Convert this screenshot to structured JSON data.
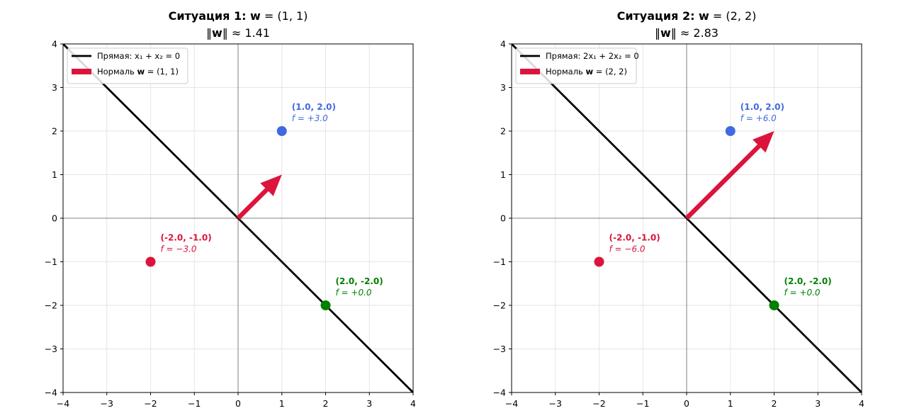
{
  "chart_data": [
    {
      "type": "scatter",
      "title": "Ситуация 1: w = (1, 1)",
      "title_bold": "Ситуация 1: ",
      "title_bold_vec": "w",
      "title_rest": " = (1, 1)",
      "subtitle": "‖w‖ ≈ 1.41",
      "subtitle_norm_prefix": "‖",
      "subtitle_norm_vec": "w",
      "subtitle_norm_suffix": "‖ ≈ 1.41",
      "xlim": [
        -4,
        4
      ],
      "ylim": [
        -4,
        4
      ],
      "xticks": [
        "−4",
        "−3",
        "−2",
        "−1",
        "0",
        "1",
        "2",
        "3",
        "4"
      ],
      "yticks": [
        "−4",
        "−3",
        "−2",
        "−1",
        "0",
        "1",
        "2",
        "3",
        "4"
      ],
      "grid": true,
      "legend_position": "top-left",
      "legend": [
        {
          "label_prefix": "Прямая: ",
          "label_math": "x₁ + x₂ = 0",
          "color": "#000000",
          "kind": "line"
        },
        {
          "label_prefix": "Нормаль ",
          "label_vec": "w",
          "label_math": " = (1, 1)",
          "color": "#dc143c",
          "kind": "arrow"
        }
      ],
      "line": {
        "x": [
          -4,
          4
        ],
        "y": [
          4,
          -4
        ],
        "color": "#000000"
      },
      "arrow": {
        "from": [
          0,
          0
        ],
        "to": [
          1,
          1
        ],
        "color": "#dc143c"
      },
      "points": [
        {
          "x": 1,
          "y": 2,
          "label": "(1.0, 2.0)",
          "f": "f = +3.0",
          "color": "#4169e1"
        },
        {
          "x": -2,
          "y": -1,
          "label": "(-2.0, -1.0)",
          "f": "f = −3.0",
          "color": "#dc143c"
        },
        {
          "x": 2,
          "y": -2,
          "label": "(2.0, -2.0)",
          "f": "f = +0.0",
          "color": "#008000"
        }
      ]
    },
    {
      "type": "scatter",
      "title": "Ситуация 2: w = (2, 2)",
      "title_bold": "Ситуация 2: ",
      "title_bold_vec": "w",
      "title_rest": " = (2, 2)",
      "subtitle": "‖w‖ ≈ 2.83",
      "subtitle_norm_prefix": "‖",
      "subtitle_norm_vec": "w",
      "subtitle_norm_suffix": "‖ ≈ 2.83",
      "xlim": [
        -4,
        4
      ],
      "ylim": [
        -4,
        4
      ],
      "xticks": [
        "−4",
        "−3",
        "−2",
        "−1",
        "0",
        "1",
        "2",
        "3",
        "4"
      ],
      "yticks": [
        "−4",
        "−3",
        "−2",
        "−1",
        "0",
        "1",
        "2",
        "3",
        "4"
      ],
      "grid": true,
      "legend_position": "top-left",
      "legend": [
        {
          "label_prefix": "Прямая: ",
          "label_math": "2x₁ + 2x₂ = 0",
          "color": "#000000",
          "kind": "line"
        },
        {
          "label_prefix": "Нормаль ",
          "label_vec": "w",
          "label_math": " = (2, 2)",
          "color": "#dc143c",
          "kind": "arrow"
        }
      ],
      "line": {
        "x": [
          -4,
          4
        ],
        "y": [
          4,
          -4
        ],
        "color": "#000000"
      },
      "arrow": {
        "from": [
          0,
          0
        ],
        "to": [
          2,
          2
        ],
        "color": "#dc143c"
      },
      "points": [
        {
          "x": 1,
          "y": 2,
          "label": "(1.0, 2.0)",
          "f": "f = +6.0",
          "color": "#4169e1"
        },
        {
          "x": -2,
          "y": -1,
          "label": "(-2.0, -1.0)",
          "f": "f = −6.0",
          "color": "#dc143c"
        },
        {
          "x": 2,
          "y": -2,
          "label": "(2.0, -2.0)",
          "f": "f = +0.0",
          "color": "#008000"
        }
      ]
    }
  ]
}
